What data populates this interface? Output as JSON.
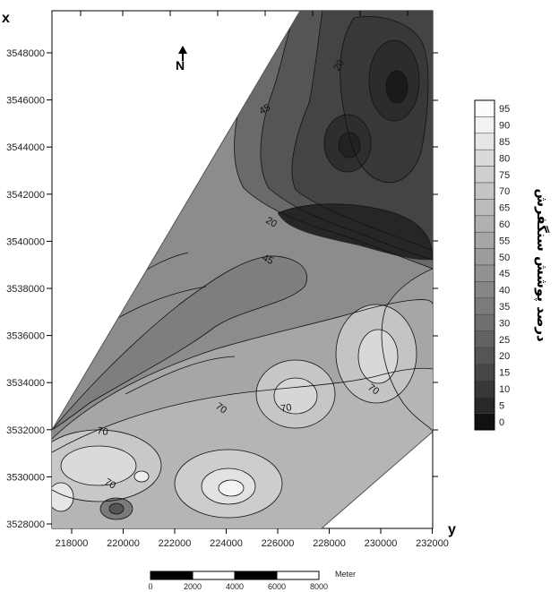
{
  "axes": {
    "x_letter": "x",
    "y_letter": "y",
    "northing_ticks": [
      "3548000",
      "3546000",
      "3544000",
      "3542000",
      "3540000",
      "3538000",
      "3536000",
      "3534000",
      "3532000",
      "3530000",
      "3528000"
    ],
    "easting_ticks": [
      "218000",
      "220000",
      "222000",
      "224000",
      "226000",
      "228000",
      "230000",
      "232000"
    ]
  },
  "north_arrow": {
    "label": "N"
  },
  "contour_labels": [
    "20",
    "45",
    "20",
    "45",
    "70",
    "70",
    "70",
    "70",
    "70"
  ],
  "legend": {
    "title": "درصد پوشش سنگفرش",
    "values": [
      "95",
      "90",
      "85",
      "80",
      "75",
      "70",
      "65",
      "60",
      "55",
      "50",
      "45",
      "40",
      "35",
      "30",
      "25",
      "20",
      "15",
      "10",
      "5",
      "0"
    ],
    "colors": [
      "#fcfcfc",
      "#f2f2f2",
      "#e6e6e6",
      "#dadada",
      "#cfcfcf",
      "#c5c5c5",
      "#bbbbbb",
      "#b0b0b0",
      "#a6a6a6",
      "#9c9c9c",
      "#929292",
      "#878787",
      "#7b7b7b",
      "#6f6f6f",
      "#626262",
      "#555555",
      "#474747",
      "#383838",
      "#282828",
      "#111111"
    ]
  },
  "scale_bar": {
    "unit": "Meter",
    "labels": [
      "0",
      "2000",
      "4000",
      "6000",
      "8000"
    ]
  }
}
